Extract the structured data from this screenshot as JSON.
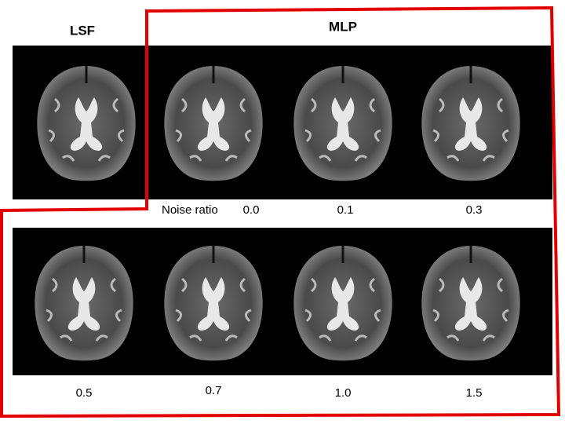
{
  "header": {
    "left_label": "LSF",
    "right_label": "MLP"
  },
  "noise_label": "Noise ratio",
  "noise_ratios": [
    "0.0",
    "0.1",
    "0.3",
    "0.5",
    "0.7",
    "1.0",
    "1.5"
  ]
}
